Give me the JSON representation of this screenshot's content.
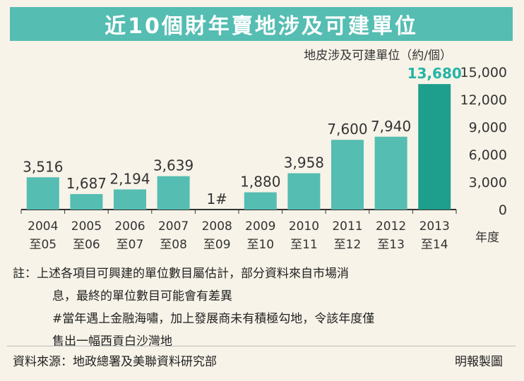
{
  "title": "近10個財年賣地涉及可建單位",
  "chart_data": {
    "type": "bar",
    "ylabel": "地皮涉及可建單位（約/個）",
    "xlabel": "年度",
    "ylim": [
      0,
      15000
    ],
    "yticks": [
      "15,000",
      "12,000",
      "9,000",
      "6,000",
      "3,000",
      "0"
    ],
    "categories": [
      {
        "start": "2004",
        "end": "至05"
      },
      {
        "start": "2005",
        "end": "至06"
      },
      {
        "start": "2006",
        "end": "至07"
      },
      {
        "start": "2007",
        "end": "至08"
      },
      {
        "start": "2008",
        "end": "至09"
      },
      {
        "start": "2009",
        "end": "至10"
      },
      {
        "start": "2010",
        "end": "至11"
      },
      {
        "start": "2011",
        "end": "至12"
      },
      {
        "start": "2012",
        "end": "至13"
      },
      {
        "start": "2013",
        "end": "至14"
      }
    ],
    "values": [
      3516,
      1687,
      2194,
      3639,
      1,
      1880,
      3958,
      7600,
      7940,
      13680
    ],
    "value_labels": [
      "3,516",
      "1,687",
      "2,194",
      "3,639",
      "1#",
      "1,880",
      "3,958",
      "7,600",
      "7,940",
      "13,680"
    ],
    "highlight_index": 9,
    "colors": {
      "bar": "#55bdb2",
      "highlight": "#1e9e8c",
      "highlight_label": "#25b4a6",
      "banner": "#55bdb2"
    }
  },
  "notes": {
    "line1": "註：上述各項目可興建的單位數目屬估計，部分資料來自市場消",
    "line2": "息，最終的單位數目可能會有差異",
    "line3": "#當年遇上金融海嘯，加上發展商未有積極勾地，令該年度僅",
    "line4": "售出一幅西貢白沙灣地"
  },
  "source": "資料來源：地政總署及美聯資料研究部",
  "credit": "明報製圖"
}
